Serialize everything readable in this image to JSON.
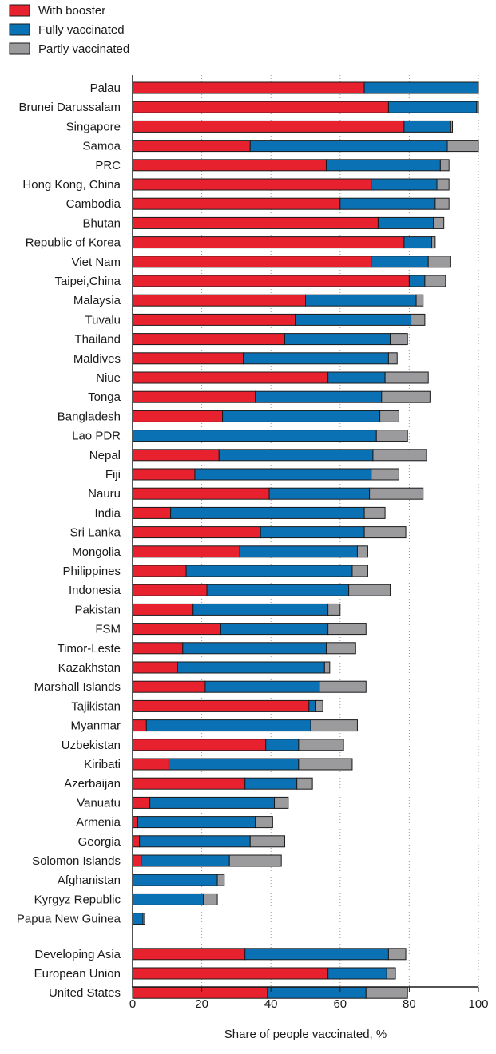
{
  "chart_data": {
    "type": "bar",
    "orientation": "horizontal",
    "stacked": true,
    "xlabel": "Share of people vaccinated, %",
    "xlim": [
      0,
      100
    ],
    "xticks": [
      0,
      20,
      40,
      60,
      80,
      100
    ],
    "grid": "vertical dotted",
    "legend_position": "top-left",
    "colors": {
      "With booster": "#e8212e",
      "Fully vaccinated": "#0a71b4",
      "Partly vaccinated": "#9b9b9e"
    },
    "series": [
      {
        "name": "With booster"
      },
      {
        "name": "Fully vaccinated"
      },
      {
        "name": "Partly vaccinated"
      }
    ],
    "groups": [
      {
        "categories": [
          "Palau",
          "Brunei Darussalam",
          "Singapore",
          "Samoa",
          "PRC",
          "Hong Kong, China",
          "Cambodia",
          "Bhutan",
          "Republic of Korea",
          "Viet Nam",
          "Taipei,China",
          "Malaysia",
          "Tuvalu",
          "Thailand",
          "Maldives",
          "Niue",
          "Tonga",
          "Bangladesh",
          "Lao PDR",
          "Nepal",
          "Fiji",
          "Nauru",
          "India",
          "Sri Lanka",
          "Mongolia",
          "Philippines",
          "Indonesia",
          "Pakistan",
          "FSM",
          "Timor-Leste",
          "Kazakhstan",
          "Marshall Islands",
          "Tajikistan",
          "Myanmar",
          "Uzbekistan",
          "Kiribati",
          "Azerbaijan",
          "Vanuatu",
          "Armenia",
          "Georgia",
          "Solomon Islands",
          "Afghanistan",
          "Kyrgyz Republic",
          "Papua New Guinea"
        ],
        "with_booster": [
          67,
          74,
          78.5,
          34,
          56,
          69,
          60,
          71,
          78.5,
          69,
          80,
          50,
          47,
          44,
          32,
          56.5,
          35.5,
          26,
          0,
          25,
          18,
          39.5,
          11,
          37,
          31,
          15.5,
          21.5,
          17.5,
          25.5,
          14.5,
          13,
          21,
          51,
          4,
          38.5,
          10.5,
          32.5,
          5,
          1.5,
          2,
          2.5,
          0,
          0,
          0
        ],
        "fully_vaccinated": [
          33,
          25.5,
          13.5,
          57,
          33,
          19,
          27.5,
          16,
          8,
          16.5,
          4.5,
          32,
          33.5,
          30.5,
          42,
          16.5,
          36.5,
          45.5,
          70.5,
          44.5,
          51,
          29,
          56,
          30,
          34,
          48,
          41,
          39,
          31,
          41.5,
          42.5,
          33,
          2,
          47.5,
          9.5,
          37.5,
          15,
          36,
          34,
          32,
          25.5,
          24.5,
          20.5,
          3
        ],
        "partly_vaccinated": [
          0,
          0.5,
          0.5,
          9,
          2.5,
          3.5,
          4,
          3,
          1,
          6.5,
          6,
          2,
          4,
          5,
          2.5,
          12.5,
          14,
          5.5,
          9,
          15.5,
          8,
          15.5,
          6,
          12,
          3,
          4.5,
          12,
          3.5,
          11,
          8.5,
          1.5,
          13.5,
          2,
          13.5,
          13,
          15.5,
          4.5,
          4,
          5,
          10,
          15,
          2,
          4,
          0.5
        ]
      },
      {
        "categories": [
          "Developing Asia",
          "European Union",
          "United States"
        ],
        "with_booster": [
          32.5,
          56.5,
          39
        ],
        "fully_vaccinated": [
          41.5,
          17,
          28.5
        ],
        "partly_vaccinated": [
          5,
          2.5,
          12
        ]
      }
    ]
  }
}
